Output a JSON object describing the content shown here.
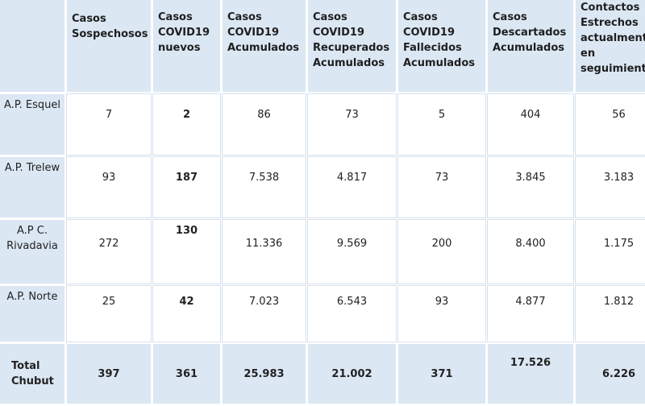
{
  "headers": [
    "",
    "Casos Sospechosos",
    "Casos COVID19 nuevos",
    "Casos COVID19 Acumulados",
    "Casos COVID19 Recuperados Acumulados",
    "Casos COVID19 Fallecidos Acumulados",
    "Casos Descartados Acumulados",
    "Contactos Estrechos actualmente en seguimiento"
  ],
  "rows": [
    {
      "area": "A.P. Esquel",
      "values": [
        "7",
        "2",
        "86",
        "73",
        "5",
        "404",
        "56"
      ]
    },
    {
      "area": "A.P. Trelew",
      "values": [
        "93",
        "187",
        "7.538",
        "4.817",
        "73",
        "3.845",
        "3.183"
      ]
    },
    {
      "area": "A.P C. Rivadavia",
      "values": [
        "272",
        "130",
        "11.336",
        "9.569",
        "200",
        "8.400",
        "1.175"
      ]
    },
    {
      "area": "A.P. Norte",
      "values": [
        "25",
        "42",
        "7.023",
        "6.543",
        "93",
        "4.877",
        "1.812"
      ]
    }
  ],
  "total": {
    "label": "Total Chubut",
    "values": [
      "397",
      "361",
      "25.983",
      "21.002",
      "371",
      "17.526",
      "6.226"
    ]
  }
}
